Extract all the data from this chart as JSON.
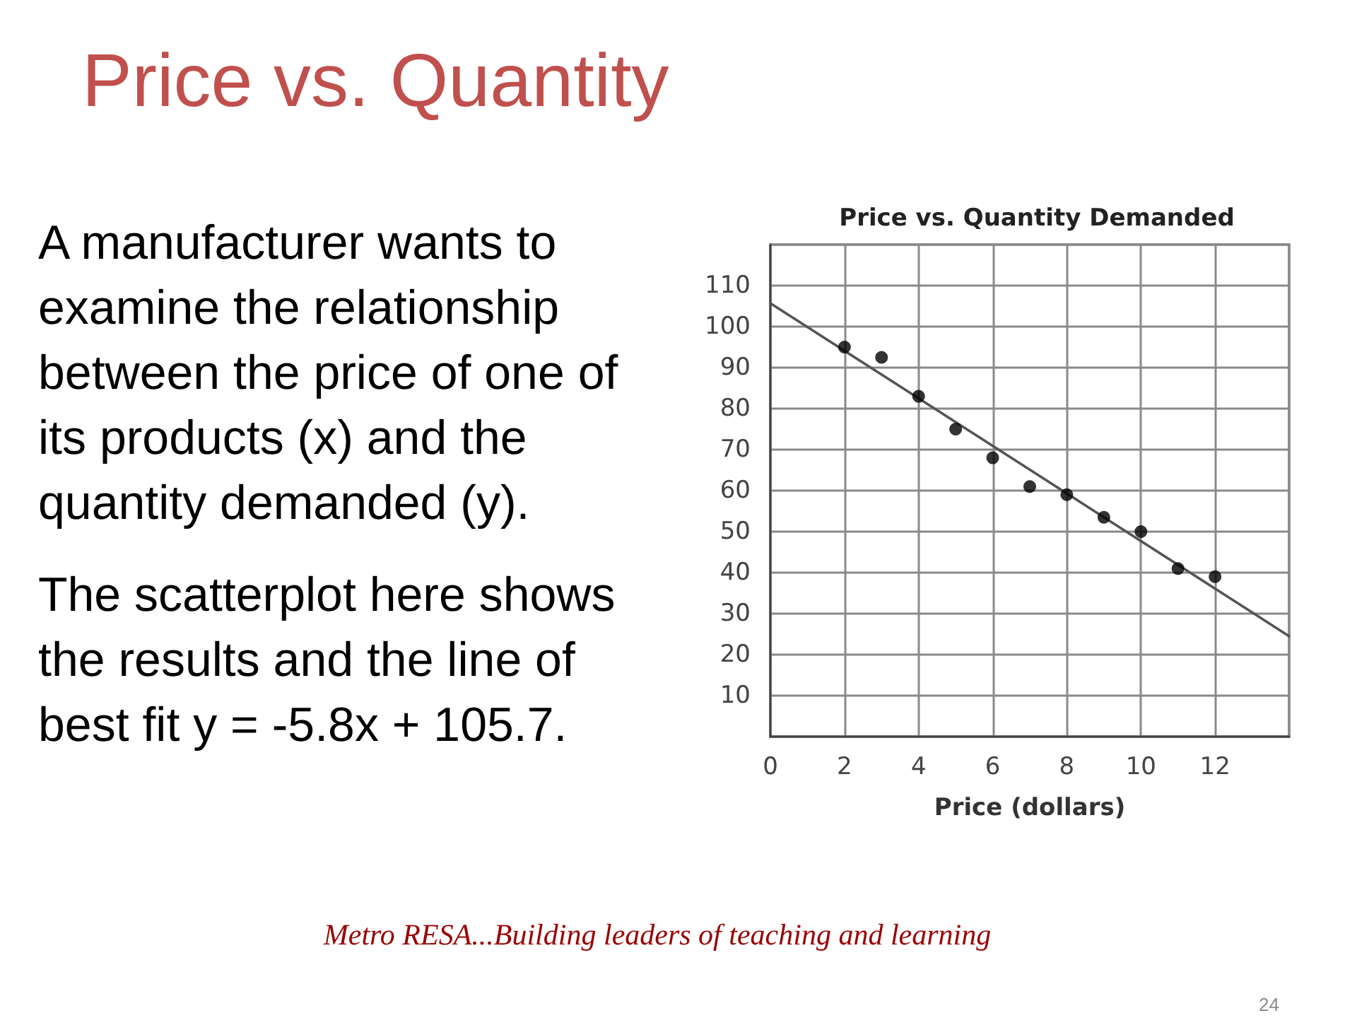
{
  "chart_data": {
    "type": "scatter",
    "title": "Price vs. Quantity",
    "subtitle": "Price vs. Quantity Demanded",
    "xlabel": "Price (dollars)",
    "annotations": [
      "A manufacturer wants to examine the relationship between the price of one of its products (x) and the quantity demanded (y).",
      "The scatterplot here shows the results and the line of best fit y = -5.8x + 105.7.",
      "Metro RESA...Building leaders of teaching and learning",
      "24"
    ],
    "x": [
      2,
      3,
      4,
      5,
      6,
      7,
      8,
      9,
      10,
      11,
      12
    ],
    "series": [
      {
        "color": "#000000",
        "values": [
          95,
          92.5,
          83,
          75,
          68,
          61,
          59,
          53.5,
          50,
          41,
          39
        ]
      },
      {
        "type": "line",
        "marker": "none",
        "color": "#555555",
        "x": [
          0,
          14
        ],
        "values": [
          105.7,
          24.5
        ]
      }
    ],
    "xlim": [
      0,
      14
    ],
    "xticks": [
      0,
      2,
      4,
      6,
      8,
      10,
      12
    ],
    "ylim": [
      0,
      120
    ],
    "yticks": [
      10,
      20,
      30,
      40,
      50,
      60,
      70,
      80,
      90,
      100,
      110
    ],
    "grid": true,
    "marker": "circle"
  }
}
